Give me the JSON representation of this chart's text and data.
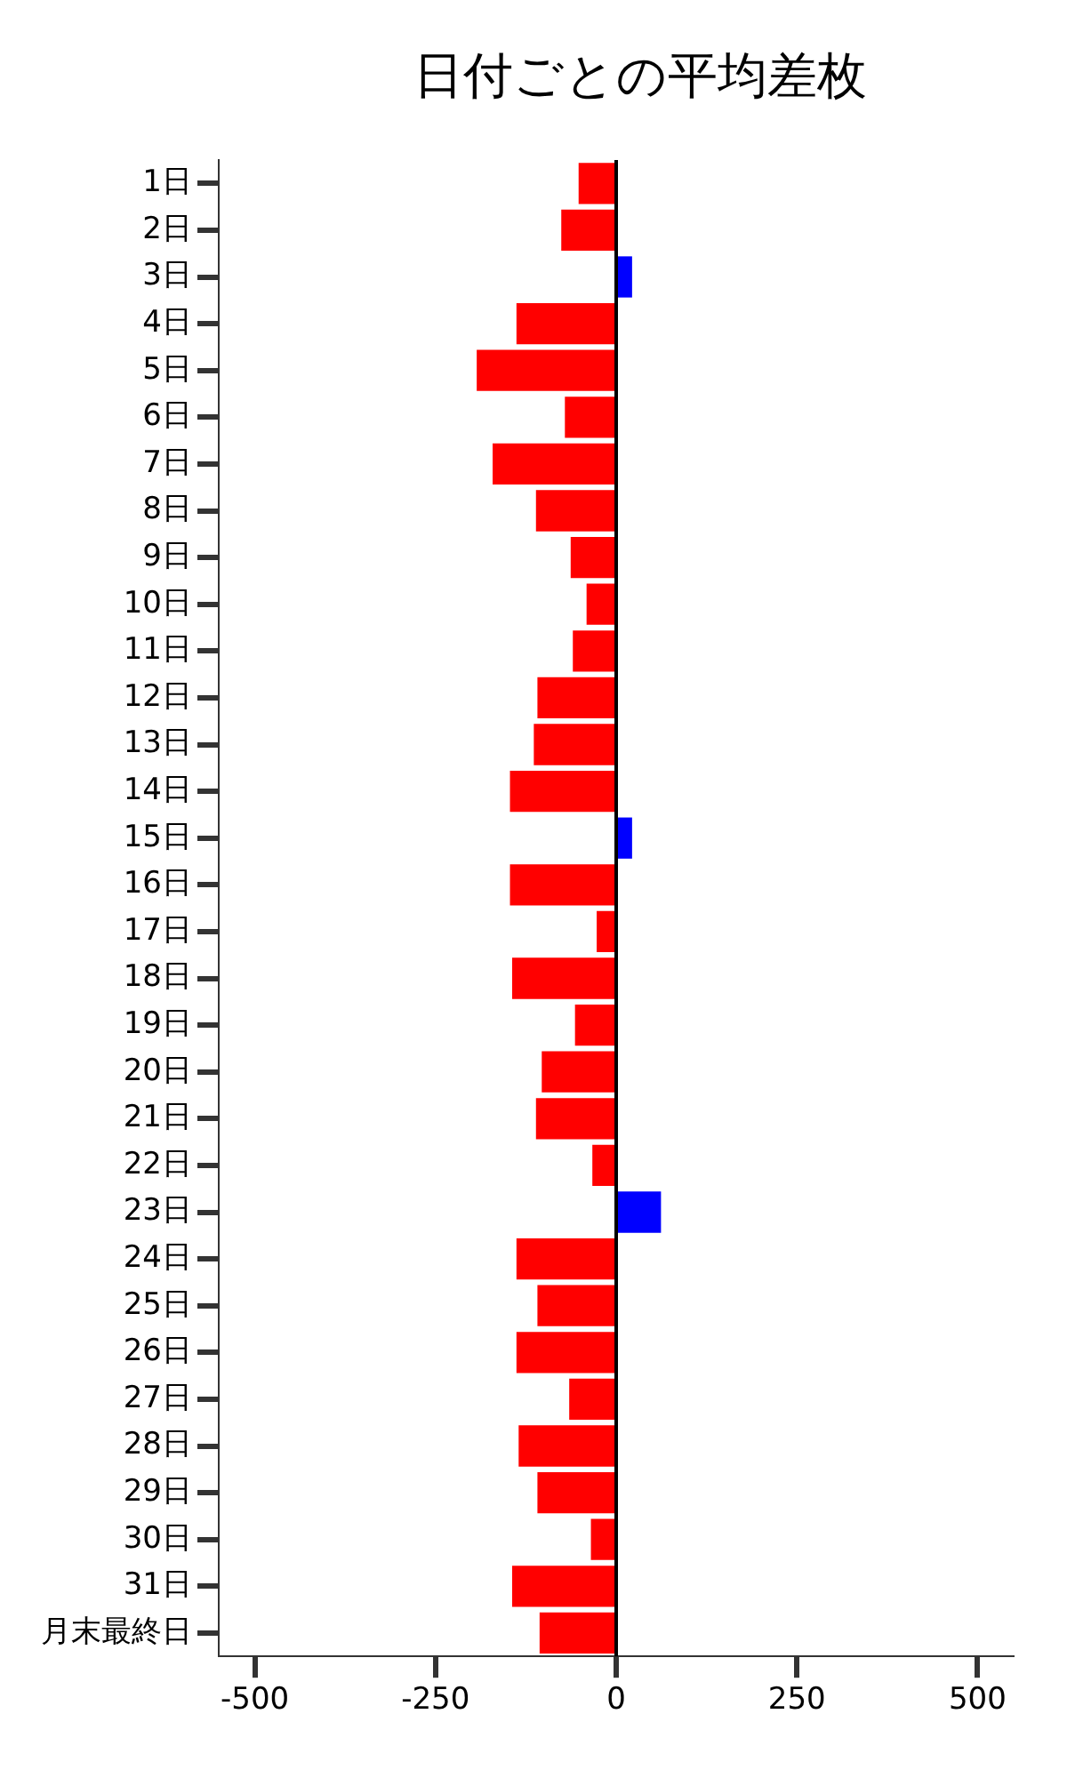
{
  "chart_data": {
    "type": "bar",
    "orientation": "horizontal",
    "title": "日付ごとの平均差枚",
    "categories": [
      "1日",
      "2日",
      "3日",
      "4日",
      "5日",
      "6日",
      "7日",
      "8日",
      "9日",
      "10日",
      "11日",
      "12日",
      "13日",
      "14日",
      "15日",
      "16日",
      "17日",
      "18日",
      "19日",
      "20日",
      "21日",
      "22日",
      "23日",
      "24日",
      "25日",
      "26日",
      "27日",
      "28日",
      "29日",
      "30日",
      "31日",
      "月末最終日"
    ],
    "values": [
      -52,
      -76,
      22,
      -138,
      -193,
      -71,
      -171,
      -111,
      -63,
      -41,
      -60,
      -109,
      -114,
      -147,
      22,
      -147,
      -27,
      -144,
      -57,
      -103,
      -111,
      -33,
      62,
      -138,
      -109,
      -138,
      -65,
      -135,
      -109,
      -35,
      -144,
      -106
    ],
    "colors": [
      "#ff0000",
      "#ff0000",
      "#0000ff",
      "#ff0000",
      "#ff0000",
      "#ff0000",
      "#ff0000",
      "#ff0000",
      "#ff0000",
      "#ff0000",
      "#ff0000",
      "#ff0000",
      "#ff0000",
      "#ff0000",
      "#0000ff",
      "#ff0000",
      "#ff0000",
      "#ff0000",
      "#ff0000",
      "#ff0000",
      "#ff0000",
      "#ff0000",
      "#0000ff",
      "#ff0000",
      "#ff0000",
      "#ff0000",
      "#ff0000",
      "#ff0000",
      "#ff0000",
      "#ff0000",
      "#ff0000",
      "#ff0000"
    ],
    "xlim": [
      -550,
      550
    ],
    "xticks": [
      -500,
      -250,
      0,
      250,
      500
    ],
    "grid": false,
    "legend": false,
    "ref_lines": [
      {
        "axis": "x",
        "value": 0,
        "color": "#000000"
      }
    ]
  }
}
